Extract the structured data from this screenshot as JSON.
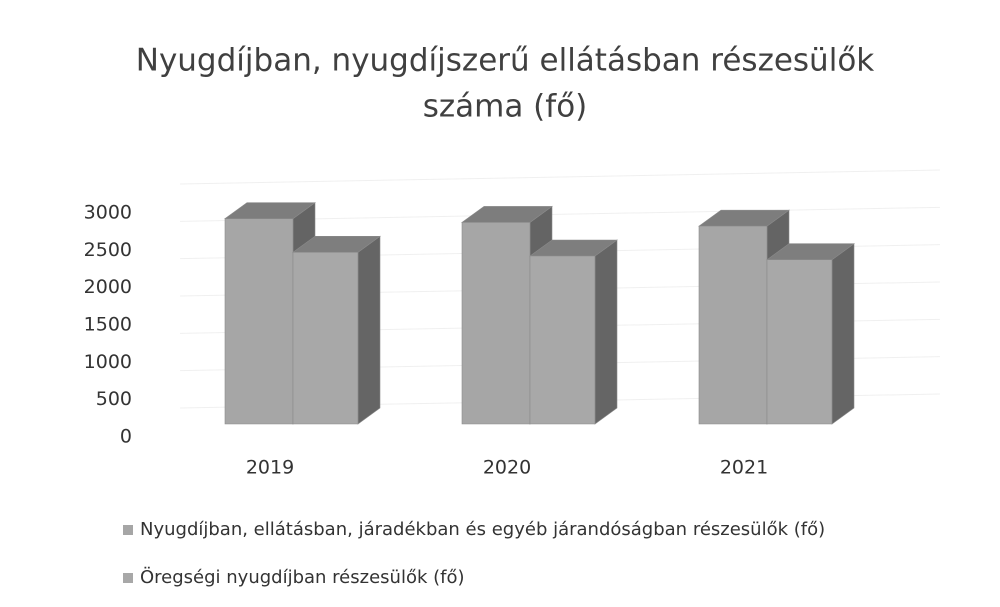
{
  "chart_data": {
    "type": "bar3d",
    "title": [
      "Nyugdíjban, nyugdíjszerű ellátásban részesülők",
      "száma (fő)"
    ],
    "categories": [
      "2019",
      "2020",
      "2021"
    ],
    "series": [
      {
        "name": "Nyugdíjban, ellátásban, járadékban és egyéb járandóságban részesülők (fő)",
        "color": "#a6a6a6",
        "values": [
          2750,
          2700,
          2650
        ]
      },
      {
        "name": "Öregségi nyugdíjban részesülők (fő)",
        "color": "#a8a8a8",
        "values": [
          2300,
          2250,
          2200
        ]
      }
    ],
    "ylim": [
      0,
      3000
    ],
    "yticks": [
      0,
      500,
      1000,
      1500,
      2000,
      2500,
      3000
    ],
    "grid": true,
    "legend": "bottom"
  }
}
